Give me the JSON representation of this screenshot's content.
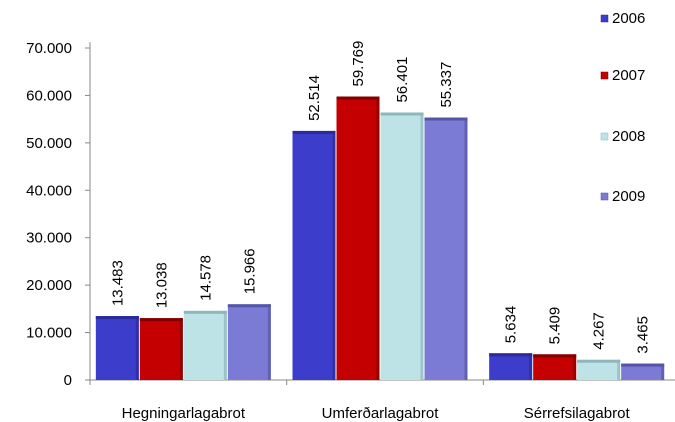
{
  "chart_data": {
    "type": "bar",
    "categories": [
      "Hegningarlagabrot",
      "Umferðarlagabrot",
      "Sérrefsilagabrot"
    ],
    "series": [
      {
        "name": "2006",
        "values": [
          13483,
          52514,
          5634
        ],
        "labels": [
          "13.483",
          "52.514",
          "5.634"
        ],
        "color": "#3d3dcc",
        "shade": "#2a2a99"
      },
      {
        "name": "2007",
        "values": [
          13038,
          59769,
          5409
        ],
        "labels": [
          "13.038",
          "59.769",
          "5.409"
        ],
        "color": "#c40000",
        "shade": "#800000"
      },
      {
        "name": "2008",
        "values": [
          14578,
          56401,
          4267
        ],
        "labels": [
          "14.578",
          "56.401",
          "4.267"
        ],
        "color": "#bde3e6",
        "shade": "#8fb7bb"
      },
      {
        "name": "2009",
        "values": [
          15966,
          55337,
          3465
        ],
        "labels": [
          "15.966",
          "55.337",
          "3.465"
        ],
        "color": "#7b7bd6",
        "shade": "#5555a8"
      }
    ],
    "yticks": [
      0,
      10000,
      20000,
      30000,
      40000,
      50000,
      60000,
      70000
    ],
    "ytick_labels": [
      "0",
      "10.000",
      "20.000",
      "30.000",
      "40.000",
      "50.000",
      "60.000",
      "70.000"
    ],
    "ylim": [
      0,
      70000
    ],
    "grid": false,
    "legend_position": "right"
  }
}
